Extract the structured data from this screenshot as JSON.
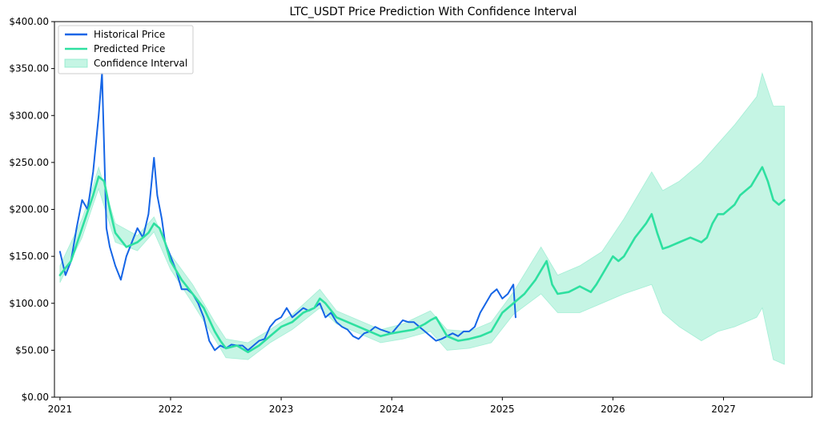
{
  "chart_data": {
    "type": "line",
    "title": "LTC_USDT Price Prediction With Confidence Interval",
    "xlabel": "",
    "ylabel": "",
    "xlim": [
      2020.95,
      2027.8
    ],
    "ylim": [
      0,
      400
    ],
    "x_ticks": [
      {
        "value": 2021,
        "label": "2021"
      },
      {
        "value": 2022,
        "label": "2022"
      },
      {
        "value": 2023,
        "label": "2023"
      },
      {
        "value": 2024,
        "label": "2024"
      },
      {
        "value": 2025,
        "label": "2025"
      },
      {
        "value": 2026,
        "label": "2026"
      },
      {
        "value": 2027,
        "label": "2027"
      }
    ],
    "y_ticks": [
      {
        "value": 0,
        "label": "$0.00"
      },
      {
        "value": 50,
        "label": "$50.00"
      },
      {
        "value": 100,
        "label": "$100.00"
      },
      {
        "value": 150,
        "label": "$150.00"
      },
      {
        "value": 200,
        "label": "$200.00"
      },
      {
        "value": 250,
        "label": "$250.00"
      },
      {
        "value": 300,
        "label": "$300.00"
      },
      {
        "value": 350,
        "label": "$350.00"
      },
      {
        "value": 400,
        "label": "$400.00"
      }
    ],
    "legend": {
      "position": "top-left",
      "entries": [
        {
          "label": "Historical Price",
          "kind": "line",
          "color": "#1565e6"
        },
        {
          "label": "Predicted Price",
          "kind": "line",
          "color": "#2ee0a0"
        },
        {
          "label": "Confidence Interval",
          "kind": "band",
          "color": "#7fe8c4"
        }
      ]
    },
    "series": [
      {
        "name": "Historical Price",
        "color": "#1565e6",
        "x": [
          2021.0,
          2021.05,
          2021.1,
          2021.15,
          2021.2,
          2021.25,
          2021.3,
          2021.35,
          2021.38,
          2021.42,
          2021.45,
          2021.5,
          2021.55,
          2021.6,
          2021.65,
          2021.7,
          2021.75,
          2021.8,
          2021.85,
          2021.88,
          2021.92,
          2021.95,
          2022.0,
          2022.05,
          2022.1,
          2022.15,
          2022.2,
          2022.25,
          2022.3,
          2022.35,
          2022.4,
          2022.45,
          2022.5,
          2022.55,
          2022.6,
          2022.65,
          2022.7,
          2022.75,
          2022.8,
          2022.85,
          2022.9,
          2022.95,
          2023.0,
          2023.05,
          2023.1,
          2023.15,
          2023.2,
          2023.25,
          2023.3,
          2023.35,
          2023.4,
          2023.45,
          2023.5,
          2023.55,
          2023.6,
          2023.65,
          2023.7,
          2023.75,
          2023.8,
          2023.85,
          2023.9,
          2023.95,
          2024.0,
          2024.05,
          2024.1,
          2024.15,
          2024.2,
          2024.25,
          2024.3,
          2024.35,
          2024.4,
          2024.45,
          2024.5,
          2024.55,
          2024.6,
          2024.65,
          2024.7,
          2024.75,
          2024.8,
          2024.85,
          2024.9,
          2024.95,
          2025.0,
          2025.05,
          2025.1,
          2025.12
        ],
        "values": [
          155,
          130,
          145,
          180,
          210,
          200,
          240,
          300,
          345,
          180,
          160,
          140,
          125,
          150,
          165,
          180,
          170,
          195,
          255,
          215,
          190,
          165,
          150,
          135,
          115,
          115,
          110,
          100,
          85,
          60,
          50,
          55,
          52,
          56,
          55,
          55,
          50,
          55,
          60,
          62,
          75,
          82,
          85,
          95,
          85,
          90,
          95,
          92,
          95,
          100,
          85,
          90,
          80,
          75,
          72,
          65,
          62,
          68,
          70,
          75,
          72,
          70,
          68,
          75,
          82,
          80,
          80,
          75,
          70,
          65,
          60,
          62,
          65,
          68,
          65,
          70,
          70,
          75,
          90,
          100,
          110,
          115,
          105,
          110,
          120,
          85
        ]
      },
      {
        "name": "Predicted Price",
        "color": "#2ee0a0",
        "x": [
          2021.0,
          2021.1,
          2021.2,
          2021.3,
          2021.35,
          2021.4,
          2021.45,
          2021.5,
          2021.6,
          2021.7,
          2021.8,
          2021.85,
          2021.9,
          2021.95,
          2022.0,
          2022.1,
          2022.2,
          2022.3,
          2022.4,
          2022.45,
          2022.5,
          2022.6,
          2022.7,
          2022.8,
          2022.9,
          2023.0,
          2023.1,
          2023.2,
          2023.3,
          2023.35,
          2023.4,
          2023.5,
          2023.6,
          2023.7,
          2023.8,
          2023.9,
          2024.0,
          2024.1,
          2024.2,
          2024.3,
          2024.35,
          2024.4,
          2024.45,
          2024.5,
          2024.6,
          2024.7,
          2024.8,
          2024.9,
          2025.0,
          2025.1,
          2025.2,
          2025.3,
          2025.35,
          2025.4,
          2025.45,
          2025.5,
          2025.6,
          2025.7,
          2025.8,
          2025.85,
          2025.9,
          2026.0,
          2026.05,
          2026.1,
          2026.2,
          2026.3,
          2026.35,
          2026.4,
          2026.45,
          2026.5,
          2026.6,
          2026.7,
          2026.8,
          2026.85,
          2026.9,
          2026.95,
          2027.0,
          2027.05,
          2027.1,
          2027.15,
          2027.2,
          2027.25,
          2027.3,
          2027.35,
          2027.4,
          2027.45,
          2027.5,
          2027.55
        ],
        "values": [
          130,
          145,
          180,
          215,
          235,
          230,
          200,
          175,
          160,
          165,
          175,
          185,
          180,
          165,
          145,
          125,
          110,
          95,
          70,
          60,
          52,
          55,
          48,
          55,
          65,
          75,
          80,
          90,
          95,
          105,
          100,
          85,
          80,
          75,
          70,
          65,
          68,
          70,
          72,
          78,
          82,
          85,
          75,
          65,
          60,
          62,
          65,
          70,
          90,
          100,
          110,
          125,
          135,
          145,
          120,
          110,
          112,
          118,
          112,
          120,
          130,
          150,
          145,
          150,
          170,
          185,
          195,
          175,
          158,
          160,
          165,
          170,
          165,
          170,
          185,
          195,
          195,
          200,
          205,
          215,
          220,
          225,
          235,
          245,
          230,
          210,
          205,
          210
        ]
      }
    ],
    "confidence_interval": {
      "name": "Confidence Interval",
      "color": "#7fe8c4",
      "x": [
        2021.0,
        2021.2,
        2021.3,
        2021.35,
        2021.5,
        2021.7,
        2021.85,
        2022.0,
        2022.2,
        2022.4,
        2022.5,
        2022.7,
        2022.9,
        2023.1,
        2023.35,
        2023.5,
        2023.7,
        2023.9,
        2024.1,
        2024.35,
        2024.5,
        2024.7,
        2024.9,
        2025.1,
        2025.35,
        2025.5,
        2025.7,
        2025.9,
        2026.1,
        2026.35,
        2026.45,
        2026.6,
        2026.8,
        2026.95,
        2027.1,
        2027.3,
        2027.35,
        2027.45,
        2027.55
      ],
      "upper": [
        140,
        190,
        225,
        245,
        185,
        172,
        192,
        152,
        120,
        80,
        62,
        58,
        72,
        88,
        115,
        92,
        82,
        72,
        78,
        92,
        72,
        70,
        80,
        112,
        160,
        130,
        140,
        155,
        190,
        240,
        220,
        230,
        250,
        270,
        290,
        320,
        345,
        310,
        310
      ],
      "lower": [
        122,
        170,
        205,
        222,
        165,
        156,
        176,
        136,
        100,
        62,
        42,
        40,
        58,
        72,
        95,
        78,
        68,
        58,
        62,
        70,
        50,
        52,
        58,
        88,
        110,
        90,
        90,
        100,
        110,
        120,
        90,
        75,
        60,
        70,
        75,
        85,
        95,
        40,
        35
      ]
    }
  }
}
